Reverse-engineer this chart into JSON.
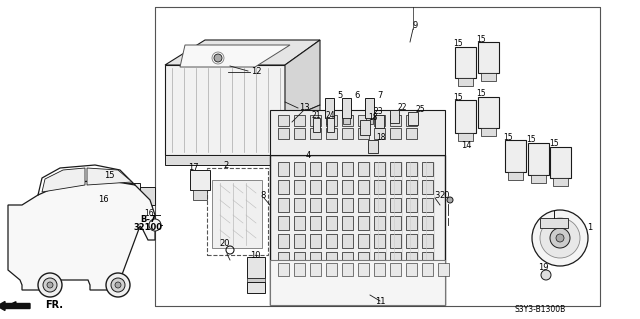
{
  "bg": "#ffffff",
  "lc": "#1a1a1a",
  "fig_w": 6.4,
  "fig_h": 3.19,
  "diagram_code": "S3Y3-B1300B",
  "ref_b7": "B-7",
  "ref_32100": "32100",
  "fr": "FR."
}
